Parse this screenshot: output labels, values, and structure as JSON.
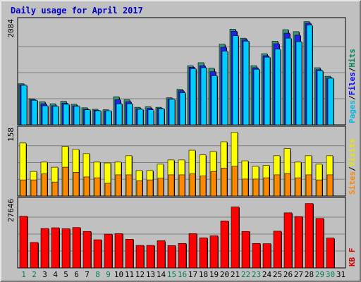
{
  "chart_data": {
    "type": "bar",
    "title": "Daily usage for April 2017",
    "days": [
      "1",
      "2",
      "3",
      "4",
      "5",
      "6",
      "7",
      "8",
      "9",
      "10",
      "11",
      "12",
      "13",
      "14",
      "15",
      "16",
      "17",
      "18",
      "19",
      "20",
      "21",
      "22",
      "23",
      "24",
      "25",
      "26",
      "27",
      "28",
      "29",
      "30",
      "31"
    ],
    "weekend_days": [
      "1",
      "2",
      "8",
      "9",
      "15",
      "16",
      "22",
      "23",
      "29",
      "30"
    ],
    "panels": [
      {
        "id": "pages-files-hits",
        "max_label": "2084",
        "ylim": [
          0,
          2084
        ],
        "side_labels": [
          {
            "text": "Pages",
            "color": "#00b8e6"
          },
          {
            "text": "Files",
            "color": "#0000ff"
          },
          {
            "text": "Hits",
            "color": "#00805c"
          }
        ],
        "series": [
          {
            "name": "Hits",
            "color": "#33997a",
            "values": [
              820,
              520,
              460,
              420,
              470,
              410,
              340,
              310,
              300,
              560,
              500,
              350,
              360,
              350,
              540,
              710,
              1180,
              1240,
              1130,
              1610,
              1910,
              1730,
              1180,
              1420,
              1670,
              1900,
              1860,
              2060,
              1140,
              970,
              0
            ]
          },
          {
            "name": "Files",
            "color": "#2222ee",
            "values": [
              800,
              500,
              420,
              380,
              430,
              380,
              310,
              290,
              280,
              500,
              460,
              320,
              330,
              330,
              520,
              680,
              1150,
              1180,
              1060,
              1550,
              1870,
              1700,
              1140,
              1380,
              1620,
              1830,
              1790,
              2030,
              1100,
              940,
              0
            ]
          },
          {
            "name": "Pages",
            "color": "#00ccff",
            "values": [
              790,
              490,
              380,
              370,
              410,
              370,
              300,
              280,
              280,
              420,
              420,
              310,
              300,
              320,
              510,
              640,
              1120,
              1140,
              980,
              1470,
              1780,
              1670,
              1110,
              1350,
              1510,
              1730,
              1660,
              1990,
              1080,
              930,
              0
            ]
          }
        ]
      },
      {
        "id": "visits-sites",
        "max_label": "158",
        "ylim": [
          0,
          158
        ],
        "side_labels": [
          {
            "text": "Sites",
            "color": "#ff8800"
          },
          {
            "text": "Visits",
            "color": "#e6e600"
          }
        ],
        "series": [
          {
            "name": "Visits",
            "color": "#ffff00",
            "values": [
              125,
              58,
              80,
              68,
              117,
              110,
              100,
              80,
              78,
              80,
              95,
              60,
              60,
              75,
              85,
              85,
              108,
              97,
              105,
              128,
              150,
              83,
              70,
              72,
              95,
              112,
              80,
              95,
              75,
              95,
              0
            ]
          },
          {
            "name": "Sites",
            "color": "#ff8800",
            "values": [
              38,
              38,
              52,
              33,
              68,
              56,
              45,
              43,
              30,
              50,
              50,
              36,
              38,
              42,
              50,
              50,
              52,
              47,
              58,
              66,
              70,
              40,
              40,
              43,
              50,
              53,
              43,
              50,
              38,
              50,
              0
            ]
          }
        ]
      },
      {
        "id": "kbytes",
        "max_label": "27646",
        "ylim": [
          0,
          27646
        ],
        "side_labels": [
          {
            "text": "KB F",
            "color": "#dd0000"
          }
        ],
        "series": [
          {
            "name": "KB F",
            "color": "#ff0000",
            "values": [
              21100,
              10400,
              16100,
              16400,
              16000,
              16500,
              14900,
              11500,
              13800,
              14000,
              11700,
              9200,
              9200,
              11100,
              9100,
              10000,
              14000,
              12300,
              13100,
              19200,
              24900,
              14900,
              10000,
              9900,
              15000,
              22500,
              21000,
              26300,
              20200,
              12200,
              0
            ]
          }
        ]
      }
    ]
  }
}
